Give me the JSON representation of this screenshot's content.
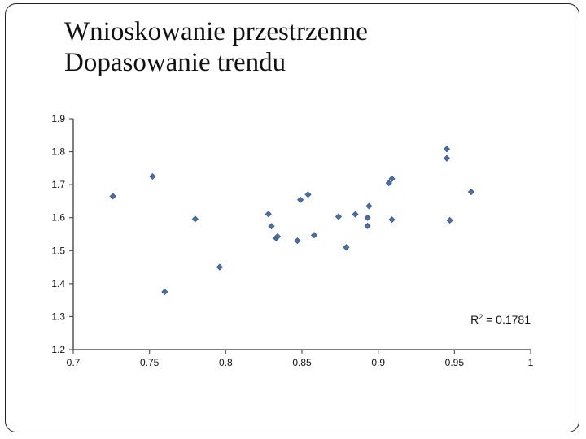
{
  "slide": {
    "title_line1": "Wnioskowanie przestrzenne",
    "title_line2": "Dopasowanie trendu"
  },
  "chart_data": {
    "type": "scatter",
    "title": "",
    "xlabel": "",
    "ylabel": "",
    "xlim": [
      0.7,
      1
    ],
    "ylim": [
      1.2,
      1.9
    ],
    "xticks": [
      "0.7",
      "0.75",
      "0.8",
      "0.85",
      "0.9",
      "0.95",
      "1"
    ],
    "yticks": [
      "1.9",
      "1.8",
      "1.7",
      "1.6",
      "1.5",
      "1.4",
      "1.3",
      "1.2"
    ],
    "grid": false,
    "marker": "diamond",
    "marker_color": "#4a6fa5",
    "annotation": {
      "base": "R",
      "sup": "2",
      "rest": " = 0.1781"
    },
    "series": [
      {
        "points": [
          {
            "x": 0.726,
            "y": 1.665
          },
          {
            "x": 0.752,
            "y": 1.725
          },
          {
            "x": 0.76,
            "y": 1.375
          },
          {
            "x": 0.78,
            "y": 1.596
          },
          {
            "x": 0.796,
            "y": 1.45
          },
          {
            "x": 0.828,
            "y": 1.611
          },
          {
            "x": 0.83,
            "y": 1.574
          },
          {
            "x": 0.833,
            "y": 1.538
          },
          {
            "x": 0.834,
            "y": 1.543
          },
          {
            "x": 0.847,
            "y": 1.53
          },
          {
            "x": 0.849,
            "y": 1.654
          },
          {
            "x": 0.854,
            "y": 1.67
          },
          {
            "x": 0.858,
            "y": 1.547
          },
          {
            "x": 0.874,
            "y": 1.603
          },
          {
            "x": 0.879,
            "y": 1.51
          },
          {
            "x": 0.885,
            "y": 1.61
          },
          {
            "x": 0.893,
            "y": 1.6
          },
          {
            "x": 0.893,
            "y": 1.575
          },
          {
            "x": 0.894,
            "y": 1.635
          },
          {
            "x": 0.907,
            "y": 1.705
          },
          {
            "x": 0.909,
            "y": 1.718
          },
          {
            "x": 0.909,
            "y": 1.594
          },
          {
            "x": 0.945,
            "y": 1.808
          },
          {
            "x": 0.945,
            "y": 1.78
          },
          {
            "x": 0.947,
            "y": 1.592
          },
          {
            "x": 0.961,
            "y": 1.678
          }
        ]
      }
    ]
  }
}
